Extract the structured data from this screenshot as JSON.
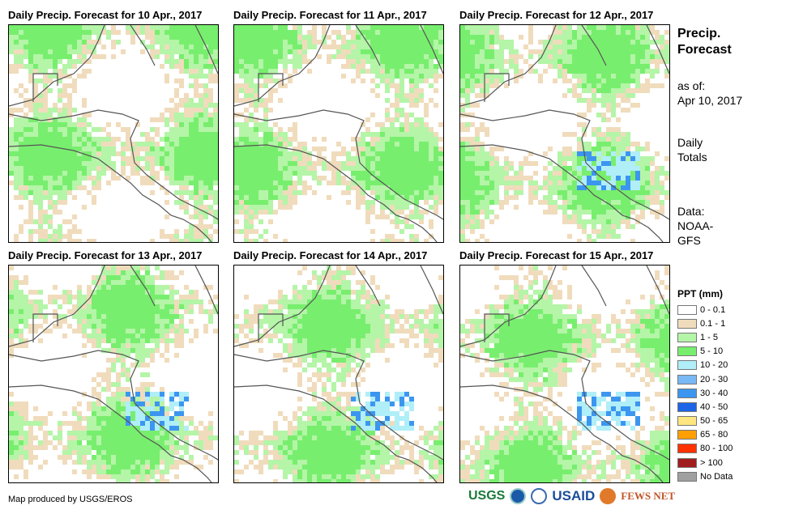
{
  "panels": [
    {
      "title": "Daily Precip. Forecast for 10 Apr., 2017"
    },
    {
      "title": "Daily Precip. Forecast for 11 Apr., 2017"
    },
    {
      "title": "Daily Precip. Forecast for 12 Apr., 2017"
    },
    {
      "title": "Daily Precip. Forecast for 13 Apr., 2017"
    },
    {
      "title": "Daily Precip. Forecast for 14 Apr., 2017"
    },
    {
      "title": "Daily Precip. Forecast for 15 Apr., 2017"
    }
  ],
  "side": {
    "title_line1": "Precip.",
    "title_line2": "Forecast",
    "asof_label": "as of:",
    "asof_date": "Apr 10, 2017",
    "totals_line1": "Daily",
    "totals_line2": "Totals",
    "data_label": "Data:",
    "data_line1": "NOAA-",
    "data_line2": "GFS"
  },
  "legend": {
    "title": "PPT (mm)",
    "items": [
      {
        "label": "0 - 0.1",
        "color": "#ffffff"
      },
      {
        "label": "0.1 - 1",
        "color": "#f0dcbc"
      },
      {
        "label": "1 - 5",
        "color": "#b4f5a8"
      },
      {
        "label": "5 - 10",
        "color": "#78ee6e"
      },
      {
        "label": "10 - 20",
        "color": "#b0eef8"
      },
      {
        "label": "20 - 30",
        "color": "#78b8f4"
      },
      {
        "label": "30 - 40",
        "color": "#3c96f0"
      },
      {
        "label": "40 - 50",
        "color": "#1e64e6"
      },
      {
        "label": "50 - 65",
        "color": "#ffe680"
      },
      {
        "label": "65 - 80",
        "color": "#ffa000"
      },
      {
        "label": "80 - 100",
        "color": "#ff3200"
      },
      {
        "label": "> 100",
        "color": "#a01e1e"
      },
      {
        "label": "No Data",
        "color": "#a0a0a0"
      }
    ]
  },
  "credit": "Map produced by USGS/EROS",
  "logos": {
    "usgs": "USGS",
    "usaid": "USAID",
    "fews": "FEWS NET"
  }
}
